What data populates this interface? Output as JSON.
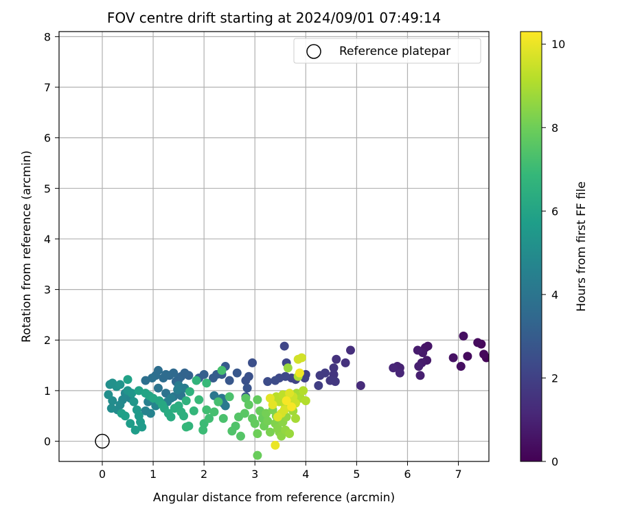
{
  "chart_data": {
    "type": "scatter",
    "title": "FOV centre drift starting at 2024/09/01 07:49:14",
    "xlabel": "Angular distance from reference (arcmin)",
    "ylabel": "Rotation from reference (arcmin)",
    "xlim": [
      -0.85,
      7.6
    ],
    "ylim": [
      -0.4,
      8.1
    ],
    "xticks": [
      0,
      1,
      2,
      3,
      4,
      5,
      6,
      7
    ],
    "yticks": [
      0,
      1,
      2,
      3,
      4,
      5,
      6,
      7,
      8
    ],
    "grid": true,
    "legend": {
      "position": "top-right",
      "label": "Reference platepar"
    },
    "reference_point": {
      "x": 0,
      "y": 0
    },
    "colorbar": {
      "label": "Hours from first FF file",
      "min": 0,
      "max": 10.3,
      "ticks": [
        0,
        2,
        4,
        6,
        8,
        10
      ],
      "colormap": [
        "#440154",
        "#482878",
        "#3e4989",
        "#31688e",
        "#26828e",
        "#1f9e89",
        "#35b779",
        "#6ece58",
        "#b5de2b",
        "#fde725"
      ]
    },
    "points": [
      [
        7.55,
        1.65,
        0.1
      ],
      [
        7.5,
        1.72,
        0.2
      ],
      [
        7.45,
        1.92,
        0.2
      ],
      [
        7.38,
        1.95,
        0.3
      ],
      [
        7.18,
        1.68,
        0.3
      ],
      [
        7.1,
        2.08,
        0.4
      ],
      [
        7.05,
        1.48,
        0.4
      ],
      [
        6.9,
        1.65,
        0.5
      ],
      [
        6.4,
        1.88,
        0.6
      ],
      [
        6.35,
        1.85,
        0.6
      ],
      [
        6.3,
        1.75,
        0.7
      ],
      [
        6.38,
        1.6,
        0.7
      ],
      [
        6.28,
        1.55,
        0.8
      ],
      [
        6.2,
        1.8,
        0.8
      ],
      [
        6.22,
        1.48,
        0.9
      ],
      [
        6.25,
        1.3,
        0.9
      ],
      [
        5.85,
        1.45,
        1.0
      ],
      [
        5.8,
        1.48,
        1.0
      ],
      [
        5.72,
        1.45,
        1.1
      ],
      [
        5.85,
        1.35,
        1.1
      ],
      [
        5.08,
        1.1,
        1.3
      ],
      [
        4.88,
        1.8,
        1.4
      ],
      [
        4.78,
        1.55,
        1.5
      ],
      [
        4.6,
        1.62,
        1.5
      ],
      [
        4.55,
        1.45,
        1.6
      ],
      [
        4.55,
        1.32,
        1.6
      ],
      [
        4.58,
        1.18,
        1.7
      ],
      [
        4.48,
        1.2,
        1.7
      ],
      [
        4.38,
        1.35,
        1.8
      ],
      [
        4.28,
        1.3,
        1.8
      ],
      [
        4.25,
        1.1,
        1.9
      ],
      [
        4.0,
        1.32,
        1.9
      ],
      [
        3.98,
        1.25,
        2.0
      ],
      [
        3.88,
        1.3,
        2.0
      ],
      [
        3.8,
        1.22,
        2.1
      ],
      [
        3.72,
        1.25,
        2.1
      ],
      [
        3.62,
        1.55,
        2.2
      ],
      [
        3.58,
        1.88,
        2.2
      ],
      [
        3.6,
        1.28,
        2.3
      ],
      [
        3.48,
        1.25,
        2.3
      ],
      [
        3.4,
        1.2,
        2.4
      ],
      [
        3.25,
        1.18,
        2.4
      ],
      [
        2.95,
        1.55,
        2.5
      ],
      [
        2.88,
        1.28,
        2.6
      ],
      [
        2.82,
        1.2,
        2.6
      ],
      [
        2.85,
        1.05,
        2.7
      ],
      [
        2.82,
        0.88,
        2.7
      ],
      [
        2.65,
        1.35,
        2.8
      ],
      [
        2.5,
        1.2,
        2.8
      ],
      [
        2.42,
        1.48,
        2.9
      ],
      [
        2.35,
        1.32,
        2.9
      ],
      [
        2.25,
        1.32,
        3.0
      ],
      [
        2.18,
        1.25,
        3.0
      ],
      [
        2.0,
        1.32,
        3.1
      ],
      [
        1.9,
        1.25,
        3.1
      ],
      [
        1.7,
        1.3,
        3.2
      ],
      [
        1.62,
        1.35,
        3.3
      ],
      [
        1.55,
        1.28,
        3.3
      ],
      [
        1.5,
        1.22,
        3.4
      ],
      [
        1.45,
        1.18,
        3.4
      ],
      [
        1.4,
        1.35,
        3.5
      ],
      [
        1.32,
        1.3,
        3.5
      ],
      [
        1.25,
        1.32,
        3.6
      ],
      [
        1.2,
        1.25,
        3.6
      ],
      [
        1.1,
        1.4,
        3.7
      ],
      [
        1.05,
        1.3,
        3.7
      ],
      [
        0.98,
        1.25,
        3.8
      ],
      [
        0.85,
        1.2,
        3.8
      ],
      [
        1.1,
        1.05,
        3.9
      ],
      [
        1.25,
        0.95,
        3.9
      ],
      [
        1.4,
        0.88,
        4.0
      ],
      [
        1.55,
        0.9,
        4.0
      ],
      [
        2.2,
        0.9,
        4.1
      ],
      [
        2.35,
        0.85,
        4.1
      ],
      [
        2.42,
        0.7,
        4.2
      ],
      [
        2.38,
        0.75,
        4.2
      ],
      [
        1.62,
        1.05,
        4.3
      ],
      [
        1.5,
        1.1,
        4.3
      ],
      [
        1.48,
        1.02,
        4.4
      ],
      [
        1.35,
        0.85,
        4.4
      ],
      [
        1.28,
        0.78,
        4.5
      ],
      [
        0.9,
        0.78,
        4.5
      ],
      [
        0.85,
        0.6,
        4.6
      ],
      [
        0.95,
        0.55,
        4.6
      ],
      [
        1.05,
        0.7,
        4.7
      ],
      [
        0.55,
        0.85,
        4.7
      ],
      [
        0.45,
        0.95,
        4.8
      ],
      [
        0.4,
        0.82,
        4.8
      ],
      [
        0.35,
        0.72,
        4.9
      ],
      [
        0.3,
        0.62,
        4.9
      ],
      [
        0.2,
        0.8,
        5.0
      ],
      [
        0.18,
        0.65,
        5.0
      ],
      [
        0.12,
        0.92,
        5.1
      ],
      [
        0.15,
        1.12,
        5.1
      ],
      [
        0.2,
        1.15,
        5.2
      ],
      [
        0.28,
        1.08,
        5.2
      ],
      [
        0.35,
        1.12,
        5.3
      ],
      [
        0.5,
        1.0,
        5.3
      ],
      [
        0.58,
        0.95,
        5.4
      ],
      [
        0.62,
        0.78,
        5.4
      ],
      [
        0.68,
        0.62,
        5.5
      ],
      [
        0.72,
        0.5,
        5.5
      ],
      [
        0.75,
        0.38,
        5.6
      ],
      [
        0.78,
        0.28,
        5.6
      ],
      [
        0.65,
        0.22,
        5.7
      ],
      [
        0.55,
        0.35,
        5.7
      ],
      [
        0.45,
        0.5,
        5.8
      ],
      [
        0.38,
        0.55,
        5.8
      ],
      [
        0.5,
        1.22,
        5.9
      ],
      [
        0.72,
        1.0,
        5.9
      ],
      [
        0.85,
        0.95,
        6.0
      ],
      [
        0.92,
        0.9,
        6.0
      ],
      [
        1.0,
        0.85,
        6.1
      ],
      [
        1.12,
        0.8,
        6.1
      ],
      [
        1.18,
        0.72,
        6.2
      ],
      [
        1.22,
        0.65,
        6.2
      ],
      [
        1.3,
        0.55,
        6.3
      ],
      [
        1.35,
        0.48,
        6.3
      ],
      [
        1.42,
        0.65,
        6.4
      ],
      [
        1.5,
        0.7,
        6.4
      ],
      [
        1.55,
        0.58,
        6.5
      ],
      [
        1.6,
        0.5,
        6.5
      ],
      [
        1.65,
        0.8,
        6.6
      ],
      [
        1.72,
        0.98,
        6.6
      ],
      [
        1.85,
        1.2,
        6.7
      ],
      [
        1.7,
        0.3,
        6.7
      ],
      [
        1.65,
        0.28,
        6.8
      ],
      [
        1.8,
        0.6,
        6.8
      ],
      [
        1.9,
        0.82,
        6.9
      ],
      [
        2.05,
        1.15,
        6.9
      ],
      [
        2.0,
        0.35,
        7.0
      ],
      [
        1.98,
        0.22,
        7.0
      ],
      [
        2.1,
        0.45,
        7.1
      ],
      [
        2.05,
        0.62,
        7.1
      ],
      [
        2.2,
        0.58,
        7.2
      ],
      [
        2.28,
        0.78,
        7.2
      ],
      [
        2.35,
        1.4,
        7.2
      ],
      [
        2.38,
        0.45,
        7.3
      ],
      [
        2.5,
        0.88,
        7.3
      ],
      [
        2.55,
        0.2,
        7.4
      ],
      [
        2.62,
        0.3,
        7.4
      ],
      [
        2.68,
        0.48,
        7.5
      ],
      [
        2.72,
        0.1,
        7.5
      ],
      [
        2.8,
        0.55,
        7.6
      ],
      [
        2.82,
        0.85,
        7.6
      ],
      [
        2.88,
        0.72,
        7.7
      ],
      [
        2.95,
        0.45,
        7.7
      ],
      [
        3.0,
        0.35,
        7.8
      ],
      [
        3.05,
        0.82,
        7.8
      ],
      [
        3.1,
        0.6,
        7.9
      ],
      [
        3.15,
        0.45,
        7.9
      ],
      [
        3.05,
        0.15,
        8.0
      ],
      [
        3.18,
        0.3,
        8.0
      ],
      [
        3.22,
        0.55,
        8.1
      ],
      [
        3.25,
        0.4,
        8.1
      ],
      [
        3.3,
        0.18,
        8.2
      ],
      [
        3.35,
        0.62,
        8.2
      ],
      [
        3.4,
        0.35,
        8.3
      ],
      [
        3.42,
        0.5,
        8.3
      ],
      [
        3.45,
        0.25,
        8.4
      ],
      [
        3.48,
        0.18,
        8.4
      ],
      [
        3.52,
        0.1,
        8.5
      ],
      [
        3.55,
        0.38,
        8.5
      ],
      [
        3.6,
        0.22,
        8.6
      ],
      [
        3.62,
        0.48,
        8.6
      ],
      [
        3.65,
        1.45,
        8.7
      ],
      [
        3.68,
        0.15,
        8.7
      ],
      [
        3.72,
        0.72,
        8.8
      ],
      [
        3.75,
        0.6,
        8.8
      ],
      [
        3.8,
        0.45,
        8.9
      ],
      [
        3.82,
        0.95,
        8.9
      ],
      [
        3.85,
        1.28,
        9.0
      ],
      [
        3.9,
        0.85,
        9.0
      ],
      [
        3.95,
        1.0,
        9.1
      ],
      [
        4.0,
        0.8,
        9.1
      ],
      [
        3.42,
        0.88,
        9.2
      ],
      [
        3.48,
        0.78,
        9.2
      ],
      [
        3.55,
        0.92,
        9.3
      ],
      [
        3.6,
        0.7,
        9.3
      ],
      [
        3.65,
        0.85,
        9.4
      ],
      [
        3.7,
        0.78,
        9.4
      ],
      [
        3.75,
        0.88,
        9.5
      ],
      [
        3.8,
        0.75,
        9.5
      ],
      [
        3.85,
        1.62,
        9.6
      ],
      [
        3.92,
        1.65,
        9.6
      ],
      [
        3.58,
        0.62,
        9.7
      ],
      [
        3.52,
        0.55,
        9.7
      ],
      [
        3.45,
        0.48,
        9.8
      ],
      [
        3.68,
        0.95,
        9.8
      ],
      [
        3.3,
        0.85,
        9.9
      ],
      [
        3.35,
        0.72,
        9.9
      ],
      [
        3.4,
        -0.08,
        10.0
      ],
      [
        3.05,
        -0.28,
        7.9
      ],
      [
        3.88,
        1.35,
        10.1
      ],
      [
        3.62,
        0.8,
        10.2
      ],
      [
        3.72,
        0.68,
        10.2
      ]
    ]
  }
}
